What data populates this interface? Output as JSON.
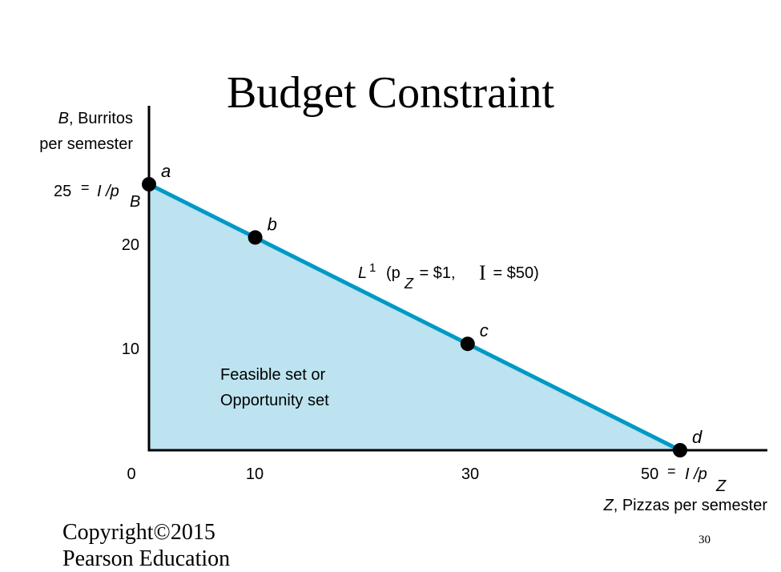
{
  "slide": {
    "title": "Budget Constraint",
    "copyright_line1": "Copyright©2015",
    "copyright_line2": "Pearson Education",
    "slide_number": "30"
  },
  "chart_data": {
    "type": "area",
    "xlim": [
      0,
      50
    ],
    "ylim": [
      0,
      25
    ],
    "x_ticks": [
      "0",
      "10",
      "30"
    ],
    "y_ticks": [
      "20",
      "10"
    ],
    "y_label_var": "B",
    "y_label_rest": ", Burritos",
    "y_label_line2": "per semester",
    "x_label_var": "Z",
    "x_label_rest": ", Pizzas per semester",
    "y_intercept": {
      "value": "25",
      "eq": "=",
      "formula": "I /p",
      "sub": "B"
    },
    "x_intercept": {
      "value": "50",
      "eq": "=",
      "formula": "I /p",
      "sub": "Z"
    },
    "line": {
      "label_var": "L",
      "label_sup": "1",
      "label_open": "(p",
      "label_sub": "Z",
      "label_mid": " = $1,  ",
      "label_income": "I",
      "label_end": " = $50)",
      "from": [
        0,
        25
      ],
      "to": [
        50,
        0
      ],
      "color": "#0099c6"
    },
    "region": {
      "label_line1": "Feasible set or",
      "label_line2": "Opportunity set",
      "color": "#bce3ef"
    },
    "points": [
      {
        "label": "a",
        "x": 0,
        "y": 25
      },
      {
        "label": "b",
        "x": 10,
        "y": 20
      },
      {
        "label": "c",
        "x": 30,
        "y": 10
      },
      {
        "label": "d",
        "x": 50,
        "y": 0
      }
    ]
  }
}
